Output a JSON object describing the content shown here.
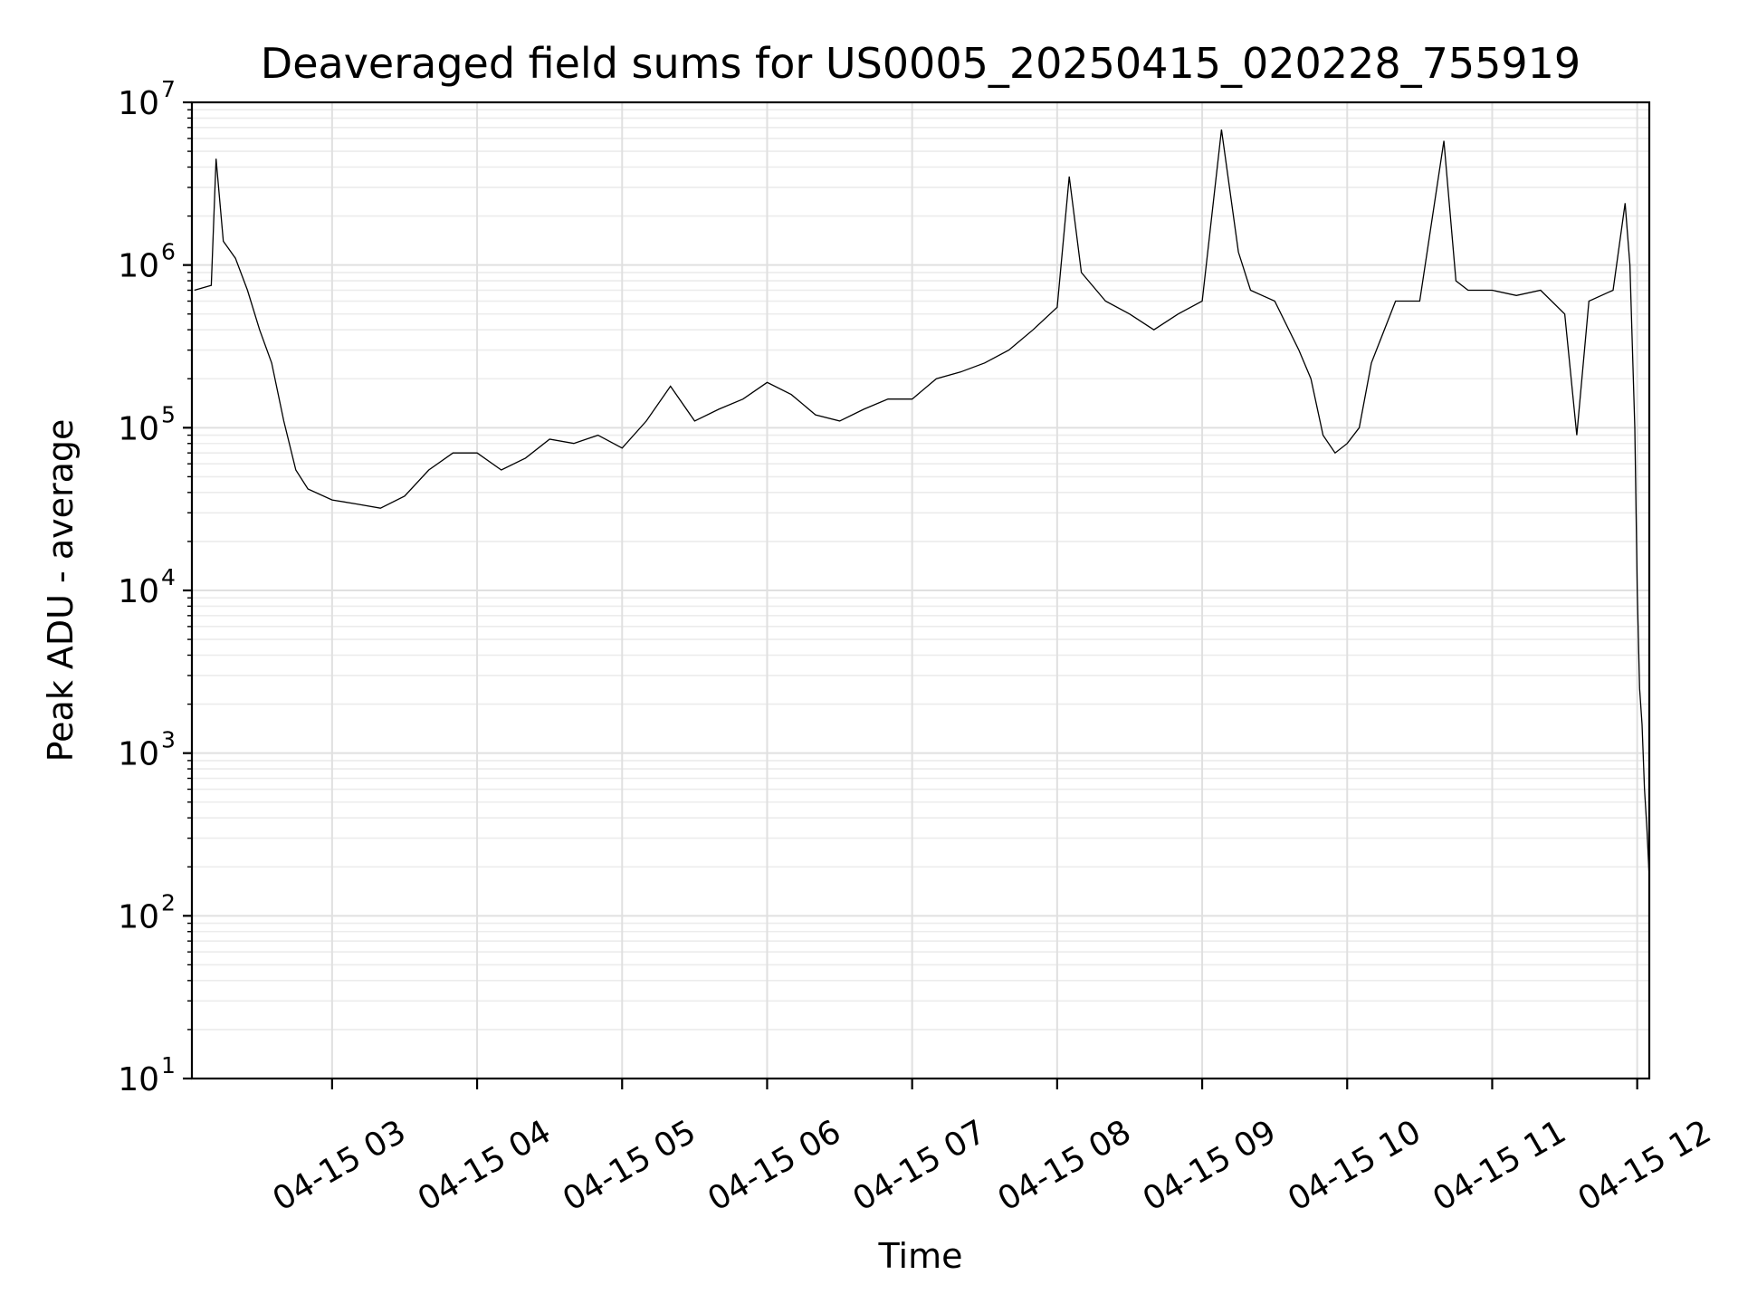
{
  "chart_data": {
    "type": "line",
    "title": "Deaveraged field sums for US0005_20250415_020228_755919",
    "xlabel": "Time",
    "ylabel": "Peak ADU - average",
    "yscale": "log",
    "ylim": [
      10,
      10000000
    ],
    "xlim": [
      "2025-04-15 02:02",
      "2025-04-15 12:05"
    ],
    "grid": "on (major and minor)",
    "line_color": "#000000",
    "x_ticks": [
      "04-15 03",
      "04-15 04",
      "04-15 05",
      "04-15 06",
      "04-15 07",
      "04-15 08",
      "04-15 09",
      "04-15 10",
      "04-15 11",
      "04-15 12"
    ],
    "y_ticks": [
      {
        "base": "10",
        "exp": "1"
      },
      {
        "base": "10",
        "exp": "2"
      },
      {
        "base": "10",
        "exp": "3"
      },
      {
        "base": "10",
        "exp": "4"
      },
      {
        "base": "10",
        "exp": "5"
      },
      {
        "base": "10",
        "exp": "6"
      },
      {
        "base": "10",
        "exp": "7"
      }
    ],
    "series": [
      {
        "color": "#000000",
        "points": [
          [
            "04-15 02:03",
            700000
          ],
          [
            "04-15 02:10",
            750000
          ],
          [
            "04-15 02:12",
            4500000
          ],
          [
            "04-15 02:15",
            1400000
          ],
          [
            "04-15 02:20",
            1100000
          ],
          [
            "04-15 02:25",
            700000
          ],
          [
            "04-15 02:30",
            400000
          ],
          [
            "04-15 02:35",
            250000
          ],
          [
            "04-15 02:40",
            110000
          ],
          [
            "04-15 02:45",
            55000
          ],
          [
            "04-15 02:50",
            42000
          ],
          [
            "04-15 03:00",
            36000
          ],
          [
            "04-15 03:10",
            34000
          ],
          [
            "04-15 03:20",
            32000
          ],
          [
            "04-15 03:30",
            38000
          ],
          [
            "04-15 03:40",
            55000
          ],
          [
            "04-15 03:50",
            70000
          ],
          [
            "04-15 04:00",
            70000
          ],
          [
            "04-15 04:10",
            55000
          ],
          [
            "04-15 04:20",
            65000
          ],
          [
            "04-15 04:30",
            85000
          ],
          [
            "04-15 04:40",
            80000
          ],
          [
            "04-15 04:50",
            90000
          ],
          [
            "04-15 05:00",
            75000
          ],
          [
            "04-15 05:10",
            110000
          ],
          [
            "04-15 05:20",
            180000
          ],
          [
            "04-15 05:30",
            110000
          ],
          [
            "04-15 05:40",
            130000
          ],
          [
            "04-15 05:50",
            150000
          ],
          [
            "04-15 06:00",
            190000
          ],
          [
            "04-15 06:10",
            160000
          ],
          [
            "04-15 06:20",
            120000
          ],
          [
            "04-15 06:30",
            110000
          ],
          [
            "04-15 06:40",
            130000
          ],
          [
            "04-15 06:50",
            150000
          ],
          [
            "04-15 07:00",
            150000
          ],
          [
            "04-15 07:10",
            200000
          ],
          [
            "04-15 07:20",
            220000
          ],
          [
            "04-15 07:30",
            250000
          ],
          [
            "04-15 07:40",
            300000
          ],
          [
            "04-15 07:50",
            400000
          ],
          [
            "04-15 08:00",
            550000
          ],
          [
            "04-15 08:05",
            3500000
          ],
          [
            "04-15 08:10",
            900000
          ],
          [
            "04-15 08:20",
            600000
          ],
          [
            "04-15 08:30",
            500000
          ],
          [
            "04-15 08:40",
            400000
          ],
          [
            "04-15 08:50",
            500000
          ],
          [
            "04-15 09:00",
            600000
          ],
          [
            "04-15 09:08",
            6800000
          ],
          [
            "04-15 09:15",
            1200000
          ],
          [
            "04-15 09:20",
            700000
          ],
          [
            "04-15 09:30",
            600000
          ],
          [
            "04-15 09:40",
            300000
          ],
          [
            "04-15 09:45",
            200000
          ],
          [
            "04-15 09:50",
            90000
          ],
          [
            "04-15 09:55",
            70000
          ],
          [
            "04-15 10:00",
            80000
          ],
          [
            "04-15 10:05",
            100000
          ],
          [
            "04-15 10:10",
            250000
          ],
          [
            "04-15 10:20",
            600000
          ],
          [
            "04-15 10:30",
            600000
          ],
          [
            "04-15 10:40",
            5800000
          ],
          [
            "04-15 10:45",
            800000
          ],
          [
            "04-15 10:50",
            700000
          ],
          [
            "04-15 11:00",
            700000
          ],
          [
            "04-15 11:10",
            650000
          ],
          [
            "04-15 11:20",
            700000
          ],
          [
            "04-15 11:30",
            500000
          ],
          [
            "04-15 11:35",
            90000
          ],
          [
            "04-15 11:40",
            600000
          ],
          [
            "04-15 11:50",
            700000
          ],
          [
            "04-15 11:55",
            2400000
          ],
          [
            "04-15 11:57",
            1000000
          ],
          [
            "04-15 11:59",
            100000
          ],
          [
            "04-15 12:00",
            10000
          ],
          [
            "04-15 12:01",
            2500
          ],
          [
            "04-15 12:02",
            1500
          ],
          [
            "04-15 12:03",
            600
          ],
          [
            "04-15 12:04",
            350
          ],
          [
            "04-15 12:05",
            170
          ]
        ]
      }
    ]
  }
}
